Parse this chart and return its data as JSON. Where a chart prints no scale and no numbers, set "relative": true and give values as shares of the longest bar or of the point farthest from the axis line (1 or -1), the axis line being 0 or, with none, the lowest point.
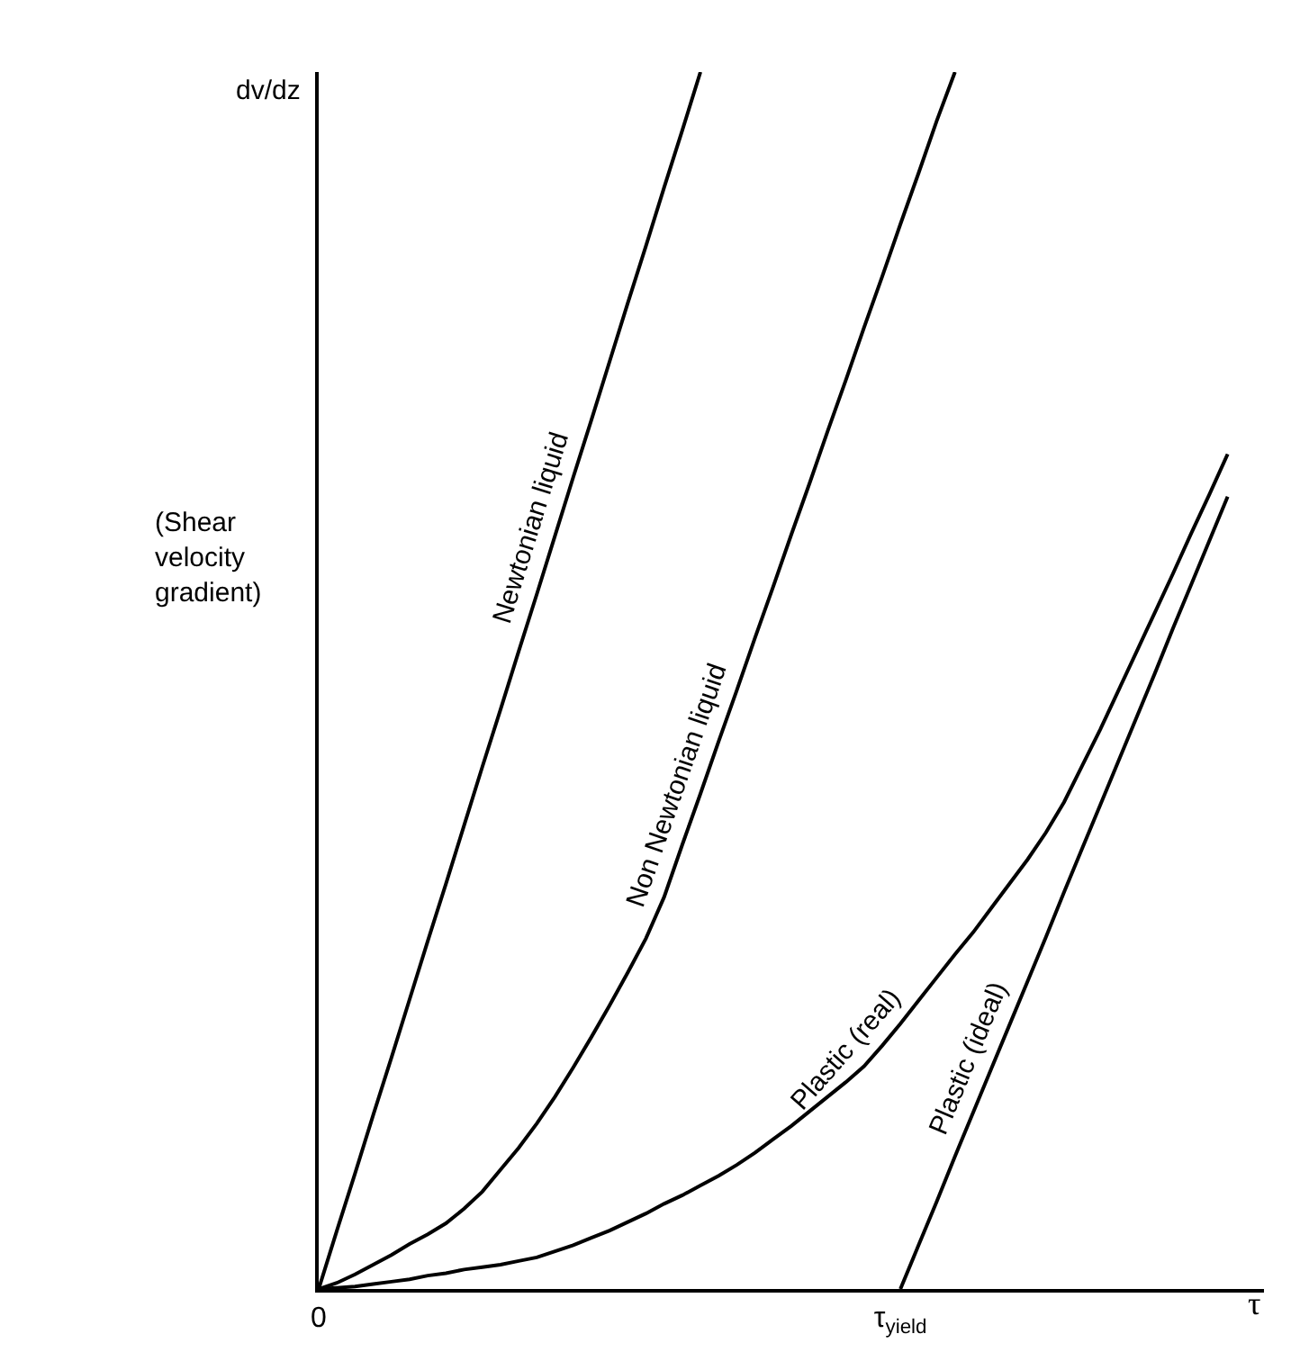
{
  "chart_data": {
    "type": "line",
    "relative": true,
    "xlabel": "τ",
    "ylabel": "dv/dz",
    "annotations": [
      "(Shear velocity gradient)"
    ],
    "legend": false,
    "marker": "none",
    "line_style": "solid",
    "categories": [
      "0",
      null,
      null,
      null,
      null,
      null,
      null,
      null,
      null,
      null,
      null,
      null,
      null,
      null,
      null,
      null,
      null,
      null,
      null,
      null,
      null,
      null,
      null,
      null,
      null,
      null,
      null,
      null,
      null,
      null,
      null,
      null,
      "τ$_{yield}$",
      null,
      null,
      null,
      null,
      null,
      null,
      null,
      null,
      null,
      null,
      null,
      null,
      null,
      null,
      null,
      null,
      null,
      null
    ],
    "series": [
      {
        "name": "Newtonian liquid",
        "color": "#000000",
        "values": [
          0,
          0.048,
          0.095,
          0.143,
          0.19,
          0.238,
          0.286,
          0.333,
          0.381,
          0.429,
          0.476,
          0.524,
          0.571,
          0.619,
          0.667,
          0.714,
          0.762,
          0.81,
          0.857,
          0.905,
          0.952,
          1,
          null,
          null,
          null,
          null,
          null,
          null,
          null,
          null,
          null,
          null,
          null,
          null,
          null,
          null,
          null,
          null,
          null,
          null,
          null,
          null,
          null,
          null,
          null,
          null,
          null,
          null,
          null,
          null,
          null
        ]
      },
      {
        "name": "Non Newtonian liquid",
        "color": "#000000",
        "values": [
          0,
          0.005,
          0.012,
          0.02,
          0.028,
          0.037,
          0.045,
          0.054,
          0.066,
          0.08,
          0.098,
          0.116,
          0.136,
          0.158,
          0.182,
          0.207,
          0.233,
          0.26,
          0.288,
          0.322,
          0.365,
          0.407,
          0.45,
          0.492,
          0.535,
          0.577,
          0.62,
          0.662,
          0.705,
          0.747,
          0.79,
          0.832,
          0.875,
          0.917,
          0.96,
          1,
          null,
          null,
          null,
          null,
          null,
          null,
          null,
          null,
          null,
          null,
          null,
          null,
          null,
          null,
          null
        ]
      },
      {
        "name": "Plastic (real)",
        "color": "#000000",
        "values": [
          0,
          0.001,
          0.002,
          0.004,
          0.006,
          0.008,
          0.011,
          0.013,
          0.016,
          0.018,
          0.02,
          0.023,
          0.026,
          0.031,
          0.036,
          0.042,
          0.048,
          0.055,
          0.062,
          0.07,
          0.077,
          0.085,
          0.093,
          0.102,
          0.112,
          0.123,
          0.134,
          0.146,
          0.158,
          0.17,
          0.183,
          0.2,
          0.218,
          0.237,
          0.256,
          0.275,
          0.293,
          0.313,
          0.333,
          0.353,
          0.375,
          0.4,
          0.43,
          0.46,
          0.492,
          0.524,
          0.556,
          0.588,
          0.621,
          0.653,
          0.686
        ]
      },
      {
        "name": "Plastic (ideal)",
        "color": "#000000",
        "values": [
          null,
          null,
          null,
          null,
          null,
          null,
          null,
          null,
          null,
          null,
          null,
          null,
          null,
          null,
          null,
          null,
          null,
          null,
          null,
          null,
          null,
          null,
          null,
          null,
          null,
          null,
          null,
          null,
          null,
          null,
          null,
          null,
          0,
          0.036,
          0.072,
          0.109,
          0.145,
          0.181,
          0.217,
          0.253,
          0.289,
          0.326,
          0.362,
          0.398,
          0.434,
          0.47,
          0.506,
          0.543,
          0.579,
          0.615,
          0.651
        ]
      }
    ]
  }
}
